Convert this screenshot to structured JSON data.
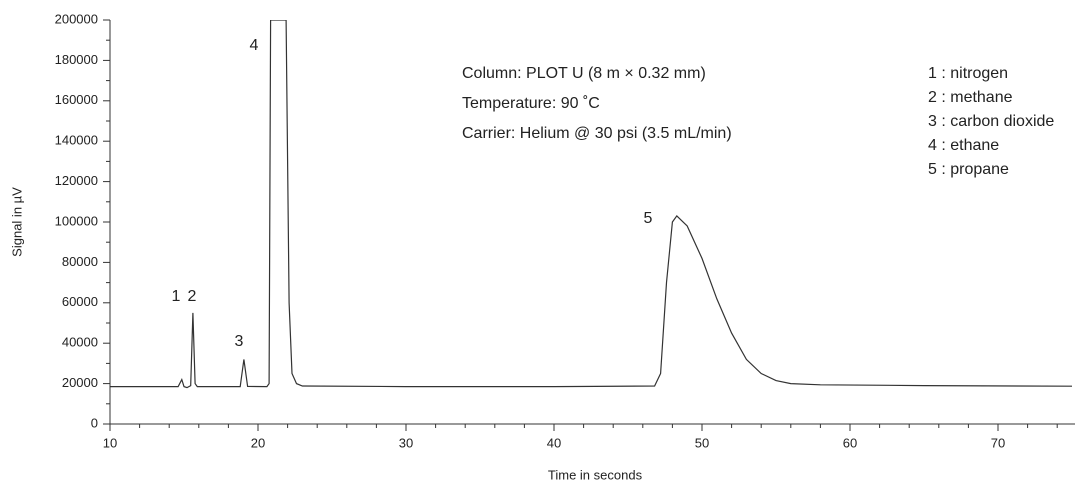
{
  "chart_data": {
    "type": "line",
    "x_label": "Time in seconds",
    "y_label": "Signal in µV",
    "xlim": [
      10,
      75
    ],
    "xticks": [
      10,
      20,
      30,
      40,
      50,
      60,
      70
    ],
    "xminorticks": [
      12,
      14,
      16,
      18,
      22,
      24,
      26,
      28,
      32,
      34,
      36,
      38,
      42,
      44,
      46,
      48,
      52,
      54,
      56,
      58,
      62,
      64,
      66,
      68,
      72,
      74
    ],
    "ylim": [
      0,
      200000
    ],
    "yticks": [
      0,
      20000,
      40000,
      60000,
      80000,
      100000,
      120000,
      140000,
      160000,
      180000,
      200000
    ],
    "yminorticks": [
      10000,
      30000,
      50000,
      70000,
      90000,
      110000,
      130000,
      150000,
      170000,
      190000
    ],
    "series": [
      {
        "color": "#333333",
        "x": [
          10,
          14.6,
          14.85,
          15.0,
          15.2,
          15.45,
          15.6,
          15.75,
          15.9,
          18.8,
          19.05,
          19.3,
          20.6,
          20.75,
          20.85,
          21.9,
          22.1,
          22.3,
          22.6,
          23.0,
          30,
          40,
          46.8,
          47.2,
          47.6,
          48.0,
          48.3,
          49,
          50,
          51,
          52,
          53,
          54,
          55,
          56,
          58,
          65,
          75
        ],
        "values": [
          18500,
          18500,
          22000,
          18500,
          18000,
          19000,
          55000,
          20000,
          18500,
          18500,
          32000,
          18600,
          18500,
          20000,
          200000,
          200000,
          60000,
          25000,
          20000,
          18800,
          18500,
          18500,
          18800,
          25000,
          70000,
          100000,
          103000,
          98000,
          82000,
          62000,
          45000,
          32000,
          25000,
          21500,
          20000,
          19400,
          19000,
          18700
        ]
      }
    ],
    "peak_labels": [
      "1",
      "2",
      "3",
      "4",
      "5"
    ],
    "conditions": [
      "Column: PLOT U (8 m × 0.32 mm)",
      "Temperature: 90 ˚C",
      "Carrier: Helium @ 30 psi (3.5 mL/min)"
    ],
    "compounds": [
      "1 : nitrogen",
      "2 : methane",
      "3 : carbon dioxide",
      "4 : ethane",
      "5 : propane"
    ]
  }
}
